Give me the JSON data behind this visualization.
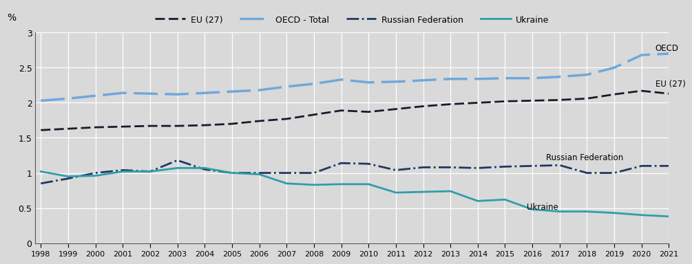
{
  "years": [
    1998,
    1999,
    2000,
    2001,
    2002,
    2003,
    2004,
    2005,
    2006,
    2007,
    2008,
    2009,
    2010,
    2011,
    2012,
    2013,
    2014,
    2015,
    2016,
    2017,
    2018,
    2019,
    2020,
    2021
  ],
  "eu27": [
    1.61,
    1.63,
    1.65,
    1.66,
    1.67,
    1.67,
    1.68,
    1.7,
    1.74,
    1.77,
    1.83,
    1.89,
    1.87,
    1.91,
    1.95,
    1.98,
    2.0,
    2.02,
    2.03,
    2.04,
    2.06,
    2.12,
    2.17,
    2.13
  ],
  "oecd": [
    2.03,
    2.06,
    2.1,
    2.14,
    2.13,
    2.12,
    2.14,
    2.16,
    2.18,
    2.23,
    2.27,
    2.33,
    2.29,
    2.3,
    2.32,
    2.34,
    2.34,
    2.35,
    2.35,
    2.37,
    2.4,
    2.5,
    2.68,
    2.7
  ],
  "russia": [
    0.85,
    0.92,
    1.0,
    1.04,
    1.02,
    1.18,
    1.05,
    1.0,
    1.0,
    1.0,
    1.0,
    1.14,
    1.13,
    1.04,
    1.08,
    1.08,
    1.07,
    1.09,
    1.1,
    1.11,
    1.0,
    1.0,
    1.1,
    1.1
  ],
  "ukraine": [
    1.02,
    0.95,
    0.96,
    1.02,
    1.02,
    1.07,
    1.07,
    1.0,
    0.98,
    0.85,
    0.83,
    0.84,
    0.84,
    0.72,
    0.73,
    0.74,
    0.6,
    0.62,
    0.48,
    0.45,
    0.45,
    0.43,
    0.4,
    0.38
  ],
  "eu27_color": "#1a1a2e",
  "oecd_color": "#6fa8dc",
  "russia_color": "#1f3864",
  "ukraine_color": "#2e9ea8",
  "legend_bg_color": "#cccccc",
  "plot_bg_color": "#d9d9d9",
  "figure_bg_color": "#d9d9d9",
  "ylabel": "%",
  "ylim": [
    0,
    3
  ],
  "yticks": [
    0,
    0.5,
    1,
    1.5,
    2,
    2.5,
    3
  ],
  "legend_eu27": "EU (27)",
  "legend_oecd": "OECD - Total",
  "legend_russia": "Russian Federation",
  "legend_ukraine": "Ukraine",
  "annotation_oecd": "OECD",
  "annotation_eu27": "EU (27)",
  "annotation_russia": "Russian Federation",
  "annotation_ukraine": "Ukraine"
}
